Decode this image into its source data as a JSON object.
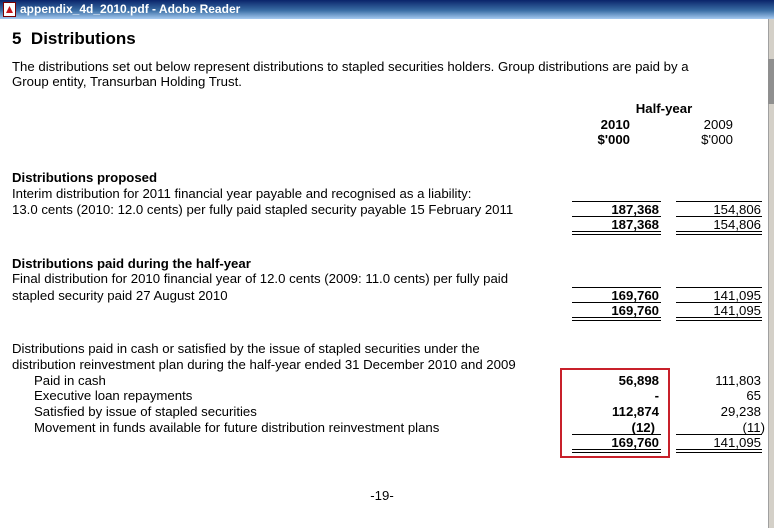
{
  "window": {
    "title": "appendix_4d_2010.pdf - Adobe Reader"
  },
  "section": {
    "number": "5",
    "title": "Distributions",
    "intro_line1": "The distributions set out below represent distributions to stapled securities holders.  Group distributions are paid by a",
    "intro_line2": "Group entity, Transurban Holding Trust."
  },
  "columns": {
    "period_label": "Half-year",
    "year_current": "2010",
    "unit_current": "$'000",
    "year_prior": "2009",
    "unit_prior": "$'000"
  },
  "proposed": {
    "heading": "Distributions proposed",
    "line1": "Interim distribution for 2011 financial year payable and recognised as a liability:",
    "line2": "13.0 cents (2010: 12.0 cents) per fully paid stapled security payable 15 February 2011",
    "value_current": "187,368",
    "value_prior": "154,806",
    "total_current": "187,368",
    "total_prior": "154,806"
  },
  "paid": {
    "heading": "Distributions paid during the half-year",
    "line1": "Final distribution for 2010 financial year of 12.0 cents (2009: 11.0 cents) per fully paid",
    "line2": "stapled security paid 27 August 2010",
    "value_current": "169,760",
    "value_prior": "141,095",
    "total_current": "169,760",
    "total_prior": "141,095"
  },
  "settlement": {
    "line1": "Distributions paid in cash or satisfied by the issue of stapled securities under the",
    "line2": "distribution reinvestment plan during the half-year ended 31 December 2010 and 2009",
    "items": [
      {
        "label": "Paid in cash",
        "current": "56,898",
        "prior": "111,803"
      },
      {
        "label": "Executive loan repayments",
        "current": "-",
        "prior": "65"
      },
      {
        "label": "Satisfied by issue of stapled securities",
        "current": "112,874",
        "prior": "29,238"
      },
      {
        "label": "Movement in funds available for future distribution reinvestment plans",
        "current": "(12)",
        "prior": "(11)"
      }
    ],
    "total_current": "169,760",
    "total_prior": "141,095"
  },
  "footer": {
    "page_number": "-19-"
  },
  "colors": {
    "highlight": "#c8202a",
    "titlebar": "#0a246a"
  }
}
